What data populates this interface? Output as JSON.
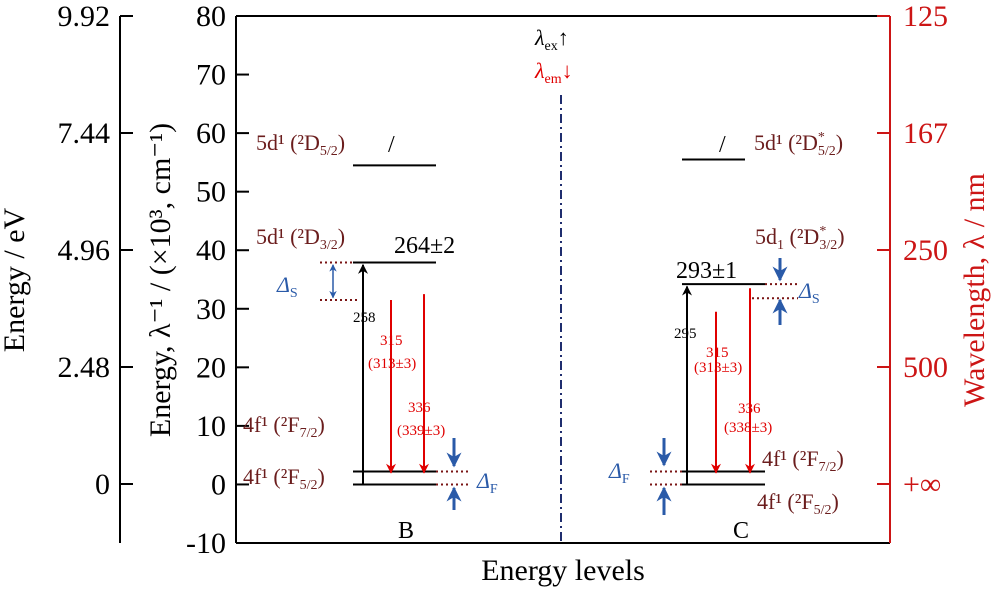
{
  "axes": {
    "ev_axis_label": "Energy / eV",
    "ev_ticks": [
      "9.92",
      "7.44",
      "4.96",
      "2.48",
      "0"
    ],
    "main_ylabel": "Energy, λ⁻¹ / (×10³, cm⁻¹)",
    "main_ticks": [
      "80",
      "70",
      "60",
      "50",
      "40",
      "30",
      "20",
      "10",
      "0",
      "-10"
    ],
    "main_ticks_values": [
      80,
      70,
      60,
      50,
      40,
      30,
      20,
      10,
      0,
      -10
    ],
    "ylim": [
      -10,
      80
    ],
    "wavelength_label": "Wavelength, λ / nm",
    "wavelength_ticks": [
      "125",
      "167",
      "250",
      "500",
      "+∞"
    ],
    "xlabel": "Energy levels"
  },
  "legend": {
    "ex": "λ",
    "ex_sub": "ex",
    "ex_arrow": "↑",
    "em": "λ",
    "em_sub": "em",
    "em_arrow": "↓"
  },
  "panel_b": {
    "name": "B",
    "term_5d_upper": "5d¹ (²D",
    "term_5d_upper_sub": "5/2",
    "term_5d_lower": "5d¹ (²D",
    "term_5d_lower_sub": "3/2",
    "term_4f_upper": "4f¹ (²F",
    "term_4f_upper_sub": "7/2",
    "term_4f_ground": "4f¹ (²F",
    "term_4f_ground_sub": "5/2",
    "paren_close": ")",
    "break_mark": "/",
    "level_value": "264±2",
    "excitation": "258",
    "emission_1": "315",
    "emission_1_paren": "(313±3)",
    "emission_2": "336",
    "emission_2_paren": "(339±3)",
    "delta_s": "Δ",
    "delta_s_sub": "S",
    "delta_f": "Δ",
    "delta_f_sub": "F"
  },
  "panel_c": {
    "name": "C",
    "term_5d_upper": "5d¹ (²D",
    "term_5d_upper_sup": "*",
    "term_5d_upper_sub": "5/2",
    "term_5d_lower": "5d",
    "term_5d_lower_sub1": "1",
    "term_5d_lower_mid": " (²D",
    "term_5d_lower_sup": "*",
    "term_5d_lower_sub": "3/2",
    "term_4f_upper": "4f¹ (²F",
    "term_4f_upper_sub": "7/2",
    "term_4f_ground": "4f¹ (²F",
    "term_4f_ground_sub": "5/2",
    "paren_close": ")",
    "break_mark": "/",
    "level_value": "293±1",
    "excitation": "295",
    "emission_1": "315",
    "emission_1_paren": "(313±3)",
    "emission_2": "336",
    "emission_2_paren": "(338±3)",
    "delta_s": "Δ",
    "delta_s_sub": "S",
    "delta_f": "Δ",
    "delta_f_sub": "F"
  },
  "levels_kcm": {
    "b": {
      "d52": 54.5,
      "d32": 37.9,
      "f72": 2.2,
      "f52": 0,
      "ex_tail": 31.5,
      "em1_top": 31.5,
      "em2_top": 32.5
    },
    "c": {
      "d52": 55.5,
      "d32": 34.2,
      "f72": 2.2,
      "f52": 0,
      "em1_top": 29.5,
      "em2_top": 33.5
    }
  },
  "colors": {
    "axis": "#000000",
    "wavelength_axis": "#cc1515",
    "term": "#6b1d1d",
    "emission": "#e00000",
    "delta": "#2a5aa8",
    "dashdot": "#1f2d6e"
  }
}
